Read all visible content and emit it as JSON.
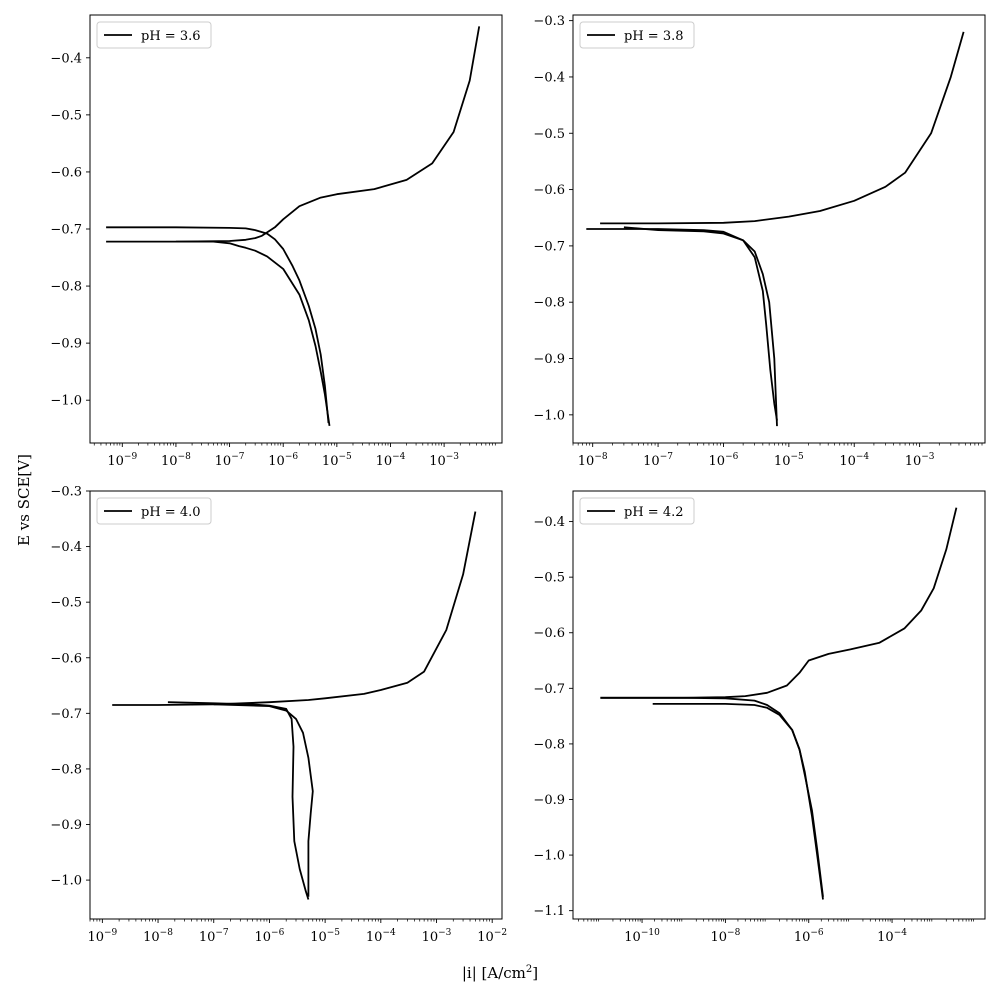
{
  "figure": {
    "ylabel": "E vs SCE[V]",
    "xlabel_base": "|i| [A/cm",
    "xlabel_sup": "2",
    "xlabel_end": "]"
  },
  "chart_data": [
    {
      "type": "line",
      "legend": "pH = 3.6",
      "legend_position": "top-left",
      "x_scale": "log",
      "xlim": [
        2.5e-10,
        0.012
      ],
      "ylim": [
        -1.075,
        -0.325
      ],
      "xticks": [
        1e-09,
        1e-08,
        1e-07,
        1e-06,
        1e-05,
        0.0001,
        0.001
      ],
      "xtick_labels": [
        "10^-9",
        "10^-8",
        "10^-7",
        "10^-6",
        "10^-5",
        "10^-4",
        "10^-3"
      ],
      "yticks": [
        -1.0,
        -0.9,
        -0.8,
        -0.7,
        -0.6,
        -0.5,
        -0.4
      ],
      "ytick_labels": [
        "−1.0",
        "−0.9",
        "−0.8",
        "−0.7",
        "−0.6",
        "−0.5",
        "−0.4"
      ],
      "grid": false,
      "color": "#000000",
      "series": [
        {
          "x": [
            5e-10,
            1e-08,
            1e-07,
            2e-07,
            3e-07,
            4e-07,
            5e-07,
            7e-07,
            1e-06,
            2e-06,
            5e-06,
            1e-05,
            5e-05,
            0.0002,
            0.0006,
            0.0015,
            0.003,
            0.0045
          ],
          "y": [
            -0.722,
            -0.722,
            -0.721,
            -0.719,
            -0.716,
            -0.712,
            -0.706,
            -0.697,
            -0.683,
            -0.66,
            -0.645,
            -0.639,
            -0.63,
            -0.614,
            -0.585,
            -0.53,
            -0.44,
            -0.345
          ]
        },
        {
          "x": [
            5e-10,
            1e-08,
            1e-07,
            2e-07,
            3e-07,
            5e-07,
            7e-07,
            1e-06,
            1.5e-06,
            2e-06,
            3e-06,
            4e-06,
            5e-06,
            6e-06,
            7e-06
          ],
          "y": [
            -0.697,
            -0.697,
            -0.698,
            -0.699,
            -0.702,
            -0.708,
            -0.718,
            -0.735,
            -0.765,
            -0.79,
            -0.835,
            -0.875,
            -0.92,
            -0.975,
            -1.04
          ]
        },
        {
          "x": [
            1e-08,
            5e-08,
            1e-07,
            1.5e-07,
            2e-07,
            3e-07,
            5e-07,
            1e-06,
            2e-06,
            3e-06,
            4e-06,
            5e-06,
            6e-06,
            7.3e-06
          ],
          "y": [
            -0.722,
            -0.722,
            -0.725,
            -0.73,
            -0.733,
            -0.738,
            -0.748,
            -0.77,
            -0.815,
            -0.86,
            -0.905,
            -0.95,
            -0.99,
            -1.045
          ]
        }
      ]
    },
    {
      "type": "line",
      "legend": "pH = 3.8",
      "legend_position": "top-left",
      "x_scale": "log",
      "xlim": [
        5e-09,
        0.01
      ],
      "ylim": [
        -1.05,
        -0.29
      ],
      "xticks": [
        1e-08,
        1e-07,
        1e-06,
        1e-05,
        0.0001,
        0.001
      ],
      "xtick_labels": [
        "10^-8",
        "10^-7",
        "10^-6",
        "10^-5",
        "10^-4",
        "10^-3"
      ],
      "yticks": [
        -1.0,
        -0.9,
        -0.8,
        -0.7,
        -0.6,
        -0.5,
        -0.4,
        -0.3
      ],
      "ytick_labels": [
        "−1.0",
        "−0.9",
        "−0.8",
        "−0.7",
        "−0.6",
        "−0.5",
        "−0.4",
        "−0.3"
      ],
      "grid": false,
      "color": "#000000",
      "series": [
        {
          "x": [
            1.3e-08,
            1e-07,
            1e-06,
            3e-06,
            1e-05,
            3e-05,
            0.0001,
            0.0003,
            0.0006,
            0.0015,
            0.003,
            0.0047
          ],
          "y": [
            -0.66,
            -0.66,
            -0.659,
            -0.656,
            -0.648,
            -0.638,
            -0.62,
            -0.595,
            -0.57,
            -0.5,
            -0.4,
            -0.32
          ]
        },
        {
          "x": [
            8e-09,
            1e-07,
            5e-07,
            1e-06,
            2e-06,
            3e-06,
            4e-06,
            5e-06,
            6e-06,
            6.6e-06
          ],
          "y": [
            -0.67,
            -0.67,
            -0.672,
            -0.675,
            -0.69,
            -0.71,
            -0.75,
            -0.8,
            -0.9,
            -1.02
          ]
        },
        {
          "x": [
            3e-08,
            1e-07,
            5e-07,
            1e-06,
            2e-06,
            3e-06,
            4e-06,
            4.5e-06,
            5.2e-06,
            6e-06,
            6.6e-06
          ],
          "y": [
            -0.667,
            -0.672,
            -0.674,
            -0.678,
            -0.69,
            -0.72,
            -0.78,
            -0.84,
            -0.92,
            -0.98,
            -1.01
          ]
        }
      ]
    },
    {
      "type": "line",
      "legend": "pH = 4.0",
      "legend_position": "top-left",
      "x_scale": "log",
      "xlim": [
        6e-10,
        0.015
      ],
      "ylim": [
        -1.07,
        -0.3
      ],
      "xticks": [
        1e-09,
        1e-08,
        1e-07,
        1e-06,
        1e-05,
        0.0001,
        0.001,
        0.01
      ],
      "xtick_labels": [
        "10^-9",
        "10^-8",
        "10^-7",
        "10^-6",
        "10^-5",
        "10^-4",
        "10^-3",
        "10^-2"
      ],
      "yticks": [
        -1.0,
        -0.9,
        -0.8,
        -0.7,
        -0.6,
        -0.5,
        -0.4,
        -0.3
      ],
      "ytick_labels": [
        "−1.0",
        "−0.9",
        "−0.8",
        "−0.7",
        "−0.6",
        "−0.5",
        "−0.4",
        "−0.3"
      ],
      "grid": false,
      "color": "#000000",
      "series": [
        {
          "x": [
            1.5e-09,
            1e-08,
            1e-07,
            1e-06,
            5e-06,
            1e-05,
            5e-05,
            0.0001,
            0.0003,
            0.0006,
            0.0015,
            0.003,
            0.005
          ],
          "y": [
            -0.685,
            -0.685,
            -0.684,
            -0.68,
            -0.676,
            -0.673,
            -0.665,
            -0.658,
            -0.645,
            -0.625,
            -0.55,
            -0.45,
            -0.337
          ]
        },
        {
          "x": [
            1.5e-08,
            1e-07,
            5e-07,
            1e-06,
            2e-06,
            2.5e-06,
            2.7e-06,
            2.6e-06,
            2.8e-06,
            3.5e-06,
            4.5e-06,
            5e-06
          ],
          "y": [
            -0.68,
            -0.682,
            -0.684,
            -0.686,
            -0.692,
            -0.71,
            -0.76,
            -0.85,
            -0.93,
            -0.98,
            -1.02,
            -1.035
          ]
        },
        {
          "x": [
            1e-07,
            1e-06,
            2e-06,
            3e-06,
            4e-06,
            5e-06,
            6e-06,
            5.5e-06,
            5e-06,
            5e-06
          ],
          "y": [
            -0.684,
            -0.687,
            -0.695,
            -0.71,
            -0.735,
            -0.78,
            -0.84,
            -0.88,
            -0.93,
            -1.03
          ]
        }
      ]
    },
    {
      "type": "line",
      "legend": "pH = 4.2",
      "legend_position": "top-left",
      "x_scale": "log",
      "xlim": [
        2.2e-12,
        0.017
      ],
      "ylim": [
        -1.115,
        -0.345
      ],
      "xticks": [
        1e-10,
        1e-08,
        1e-06,
        0.0001
      ],
      "xtick_labels": [
        "10^-10",
        "10^-8",
        "10^-6",
        "10^-4"
      ],
      "yticks": [
        -1.1,
        -1.0,
        -0.9,
        -0.8,
        -0.7,
        -0.6,
        -0.5,
        -0.4
      ],
      "ytick_labels": [
        "−1.1",
        "−1.0",
        "−0.9",
        "−0.8",
        "−0.7",
        "−0.6",
        "−0.5",
        "−0.4"
      ],
      "grid": false,
      "color": "#000000",
      "series": [
        {
          "x": [
            1e-11,
            1e-09,
            1e-08,
            3e-08,
            1e-07,
            3e-07,
            6e-07,
            1e-06,
            3e-06,
            1e-05,
            5e-05,
            0.0002,
            0.0005,
            0.001,
            0.002,
            0.0035
          ],
          "y": [
            -0.717,
            -0.717,
            -0.716,
            -0.714,
            -0.708,
            -0.695,
            -0.672,
            -0.65,
            -0.638,
            -0.63,
            -0.618,
            -0.592,
            -0.56,
            -0.52,
            -0.45,
            -0.375
          ]
        },
        {
          "x": [
            1e-11,
            1e-09,
            1e-08,
            5e-08,
            1e-07,
            2e-07,
            4e-07,
            6e-07,
            8e-07,
            1.2e-06,
            1.6e-06,
            2.2e-06
          ],
          "y": [
            -0.717,
            -0.717,
            -0.718,
            -0.722,
            -0.73,
            -0.745,
            -0.775,
            -0.81,
            -0.85,
            -0.93,
            -1.0,
            -1.08
          ]
        },
        {
          "x": [
            1.8e-10,
            1e-08,
            5e-08,
            1e-07,
            2e-07,
            4e-07,
            6e-07,
            8e-07,
            1.2e-06,
            1.6e-06,
            2.2e-06
          ],
          "y": [
            -0.728,
            -0.728,
            -0.73,
            -0.735,
            -0.748,
            -0.775,
            -0.81,
            -0.855,
            -0.92,
            -0.99,
            -1.075
          ]
        }
      ]
    }
  ]
}
